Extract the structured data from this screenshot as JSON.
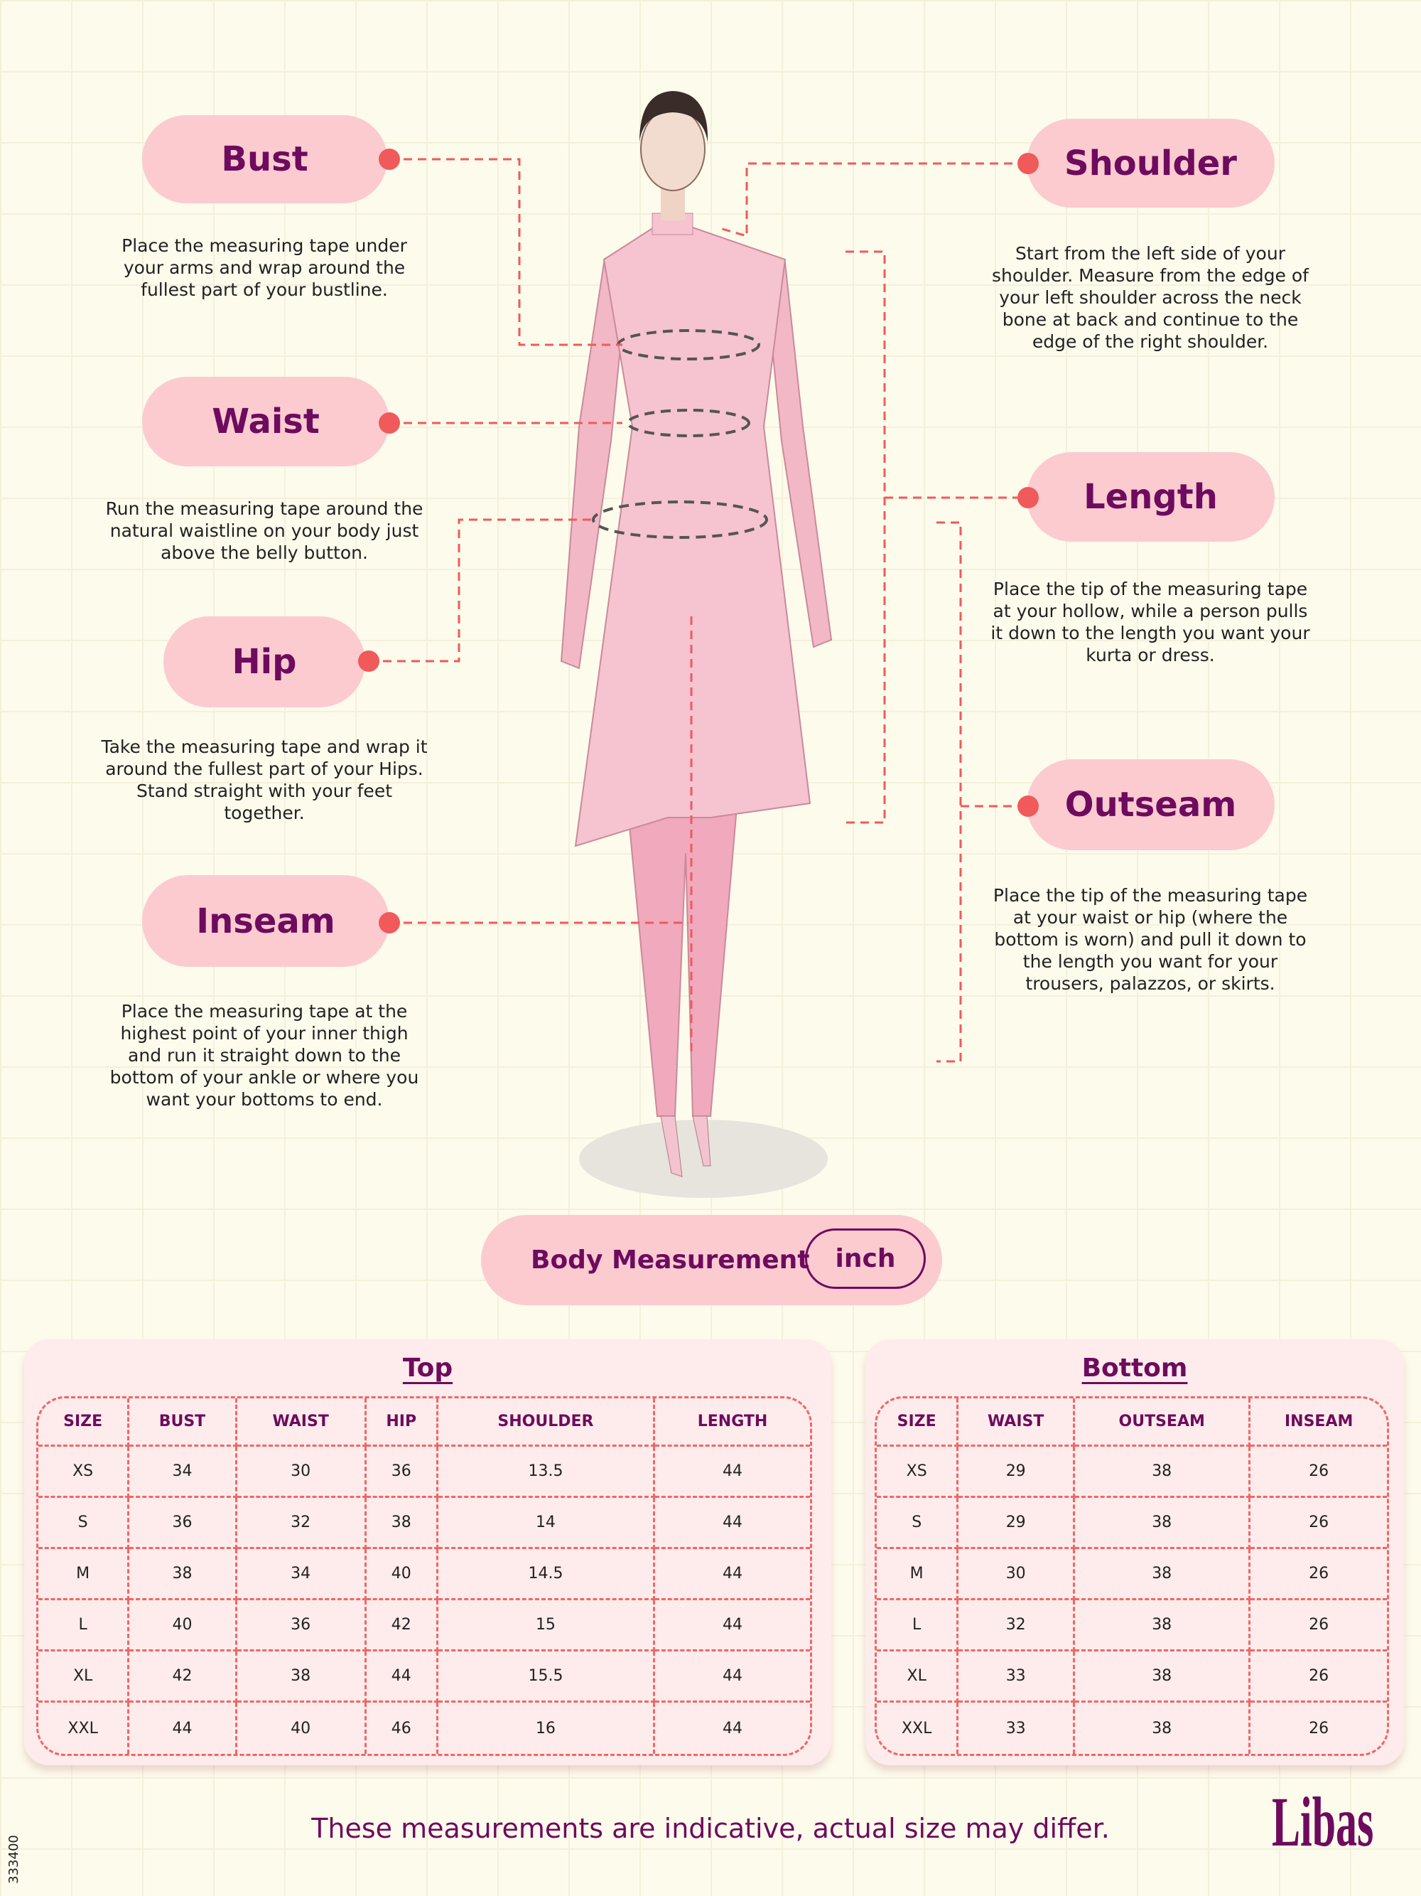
{
  "measures": {
    "bust": {
      "label": "Bust",
      "desc": "Place the measuring tape under your arms and wrap around the fullest part of your bustline."
    },
    "waist": {
      "label": "Waist",
      "desc": "Run the measuring tape around the natural waistline on your body just above the belly button."
    },
    "hip": {
      "label": "Hip",
      "desc": "Take the measuring tape and wrap it around the fullest part of your Hips. Stand straight with your feet together."
    },
    "inseam": {
      "label": "Inseam",
      "desc": "Place the measuring tape at the highest point of your inner thigh and run it straight down to the bottom of your ankle or where you want your bottoms to end."
    },
    "shoulder": {
      "label": "Shoulder",
      "desc": "Start from the left side of your shoulder. Measure from the edge of your left shoulder across the neck bone at back and continue to the edge of the right shoulder."
    },
    "length": {
      "label": "Length",
      "desc": "Place the tip of the measuring tape at your hollow, while a person pulls it down to the length you want your kurta or dress."
    },
    "outseam": {
      "label": "Outseam",
      "desc": "Place the tip of the measuring tape at your waist or hip (where the bottom is worn) and pull it down to the length you want for your trousers, palazzos, or skirts."
    }
  },
  "unit_selector": {
    "label": "Body Measurement",
    "unit": "inch"
  },
  "top_table": {
    "title": "Top",
    "headers": [
      "SIZE",
      "BUST",
      "WAIST",
      "HIP",
      "SHOULDER",
      "LENGTH"
    ],
    "rows": [
      [
        "XS",
        "34",
        "30",
        "36",
        "13.5",
        "44"
      ],
      [
        "S",
        "36",
        "32",
        "38",
        "14",
        "44"
      ],
      [
        "M",
        "38",
        "34",
        "40",
        "14.5",
        "44"
      ],
      [
        "L",
        "40",
        "36",
        "42",
        "15",
        "44"
      ],
      [
        "XL",
        "42",
        "38",
        "44",
        "15.5",
        "44"
      ],
      [
        "XXL",
        "44",
        "40",
        "46",
        "16",
        "44"
      ]
    ]
  },
  "bottom_table": {
    "title": "Bottom",
    "headers": [
      "SIZE",
      "WAIST",
      "OUTSEAM",
      "INSEAM"
    ],
    "rows": [
      [
        "XS",
        "29",
        "38",
        "26"
      ],
      [
        "S",
        "29",
        "38",
        "26"
      ],
      [
        "M",
        "30",
        "38",
        "26"
      ],
      [
        "L",
        "32",
        "38",
        "26"
      ],
      [
        "XL",
        "33",
        "38",
        "26"
      ],
      [
        "XXL",
        "33",
        "38",
        "26"
      ]
    ]
  },
  "footer": {
    "disclaimer": "These measurements are indicative, actual size may differ.",
    "brand": "Libas",
    "code": "333400"
  },
  "colors": {
    "accent": "#f05a5a",
    "pill": "#fbcbd0",
    "text_brand": "#6e0b5e",
    "background": "#fdfbec"
  }
}
